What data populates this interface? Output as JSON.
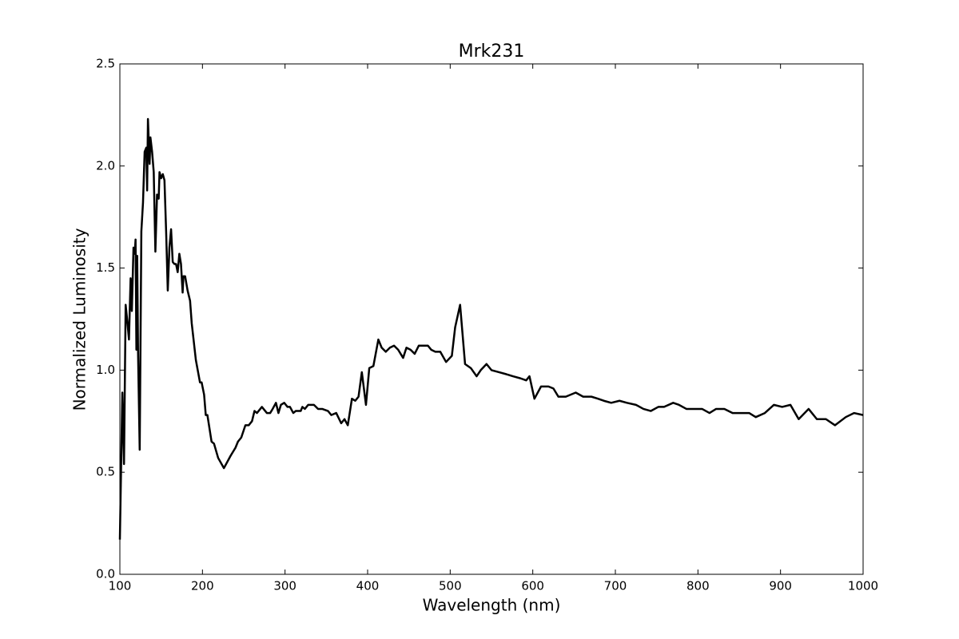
{
  "chart_data": {
    "type": "line",
    "title": "Mrk231",
    "x_label": "Wavelength (nm)",
    "y_label": "Normalized Luminosity",
    "color": "#000000",
    "x": [
      100,
      103,
      105,
      107,
      109,
      111,
      113,
      114.5,
      116.5,
      118,
      119,
      120,
      121,
      122,
      124,
      126,
      128,
      130,
      132,
      133,
      134,
      136,
      137,
      139,
      141,
      143,
      145,
      147,
      148,
      150,
      152,
      154,
      156,
      158,
      160,
      162,
      164,
      166,
      168,
      170,
      172,
      174,
      176,
      177,
      179,
      182,
      185,
      187,
      192,
      197,
      199,
      202,
      204,
      206,
      211,
      214,
      219,
      226,
      234,
      237,
      240,
      243,
      247,
      252,
      256,
      260,
      263,
      266,
      272,
      278,
      282,
      285,
      289,
      292,
      295,
      299,
      303,
      306,
      310,
      313,
      319,
      321,
      324,
      328,
      335,
      340,
      345,
      352,
      356,
      362,
      368,
      372,
      376,
      381,
      385,
      389,
      393,
      398,
      402,
      407,
      413,
      417,
      422,
      427,
      432,
      437,
      443,
      447,
      452,
      457,
      462,
      468,
      473,
      477,
      482,
      488,
      495,
      502,
      506,
      512,
      518,
      525,
      532,
      537,
      544,
      550,
      559,
      568,
      576,
      585,
      592,
      596,
      602,
      610,
      619,
      625,
      631,
      640,
      652,
      661,
      671,
      679,
      686,
      695,
      705,
      714,
      725,
      734,
      743,
      752,
      759,
      770,
      777,
      786,
      797,
      805,
      814,
      822,
      832,
      842,
      852,
      862,
      870,
      881,
      892,
      902,
      912,
      922,
      934,
      944,
      955,
      966,
      979,
      989,
      1000
    ],
    "values": [
      0.17,
      0.89,
      0.54,
      1.32,
      1.24,
      1.15,
      1.45,
      1.29,
      1.6,
      1.57,
      1.64,
      1.1,
      1.56,
      1.09,
      0.61,
      1.68,
      1.82,
      2.07,
      2.09,
      1.88,
      2.23,
      2.01,
      2.14,
      2.07,
      1.97,
      1.58,
      1.86,
      1.84,
      1.97,
      1.94,
      1.96,
      1.93,
      1.68,
      1.39,
      1.6,
      1.69,
      1.53,
      1.52,
      1.52,
      1.48,
      1.57,
      1.52,
      1.38,
      1.46,
      1.46,
      1.39,
      1.34,
      1.23,
      1.05,
      0.94,
      0.94,
      0.88,
      0.78,
      0.78,
      0.65,
      0.64,
      0.57,
      0.52,
      0.58,
      0.6,
      0.62,
      0.65,
      0.67,
      0.73,
      0.73,
      0.75,
      0.8,
      0.79,
      0.82,
      0.79,
      0.79,
      0.81,
      0.84,
      0.79,
      0.83,
      0.84,
      0.82,
      0.82,
      0.79,
      0.8,
      0.8,
      0.82,
      0.81,
      0.83,
      0.83,
      0.81,
      0.81,
      0.8,
      0.78,
      0.79,
      0.74,
      0.76,
      0.73,
      0.86,
      0.85,
      0.87,
      0.99,
      0.83,
      1.01,
      1.02,
      1.15,
      1.11,
      1.09,
      1.11,
      1.12,
      1.1,
      1.06,
      1.11,
      1.1,
      1.08,
      1.12,
      1.12,
      1.12,
      1.1,
      1.09,
      1.09,
      1.04,
      1.07,
      1.21,
      1.32,
      1.03,
      1.01,
      0.97,
      1.0,
      1.03,
      1.0,
      0.99,
      0.98,
      0.97,
      0.96,
      0.95,
      0.97,
      0.86,
      0.92,
      0.92,
      0.91,
      0.87,
      0.87,
      0.89,
      0.87,
      0.87,
      0.86,
      0.85,
      0.84,
      0.85,
      0.84,
      0.83,
      0.81,
      0.8,
      0.82,
      0.82,
      0.84,
      0.83,
      0.81,
      0.81,
      0.81,
      0.79,
      0.81,
      0.81,
      0.79,
      0.79,
      0.79,
      0.77,
      0.79,
      0.83,
      0.82,
      0.83,
      0.76,
      0.81,
      0.76,
      0.76,
      0.73,
      0.77,
      0.79,
      0.78
    ],
    "xlim": [
      100,
      1000
    ],
    "ylim": [
      0,
      2.5
    ],
    "xticks": [
      100,
      200,
      300,
      400,
      500,
      600,
      700,
      800,
      900,
      1000
    ],
    "yticks": [
      {
        "value": 0,
        "label": "0.0"
      },
      0.5,
      {
        "value": 1,
        "label": "1.0"
      },
      1.5,
      {
        "value": 2,
        "label": "2.0"
      },
      2.5
    ]
  }
}
